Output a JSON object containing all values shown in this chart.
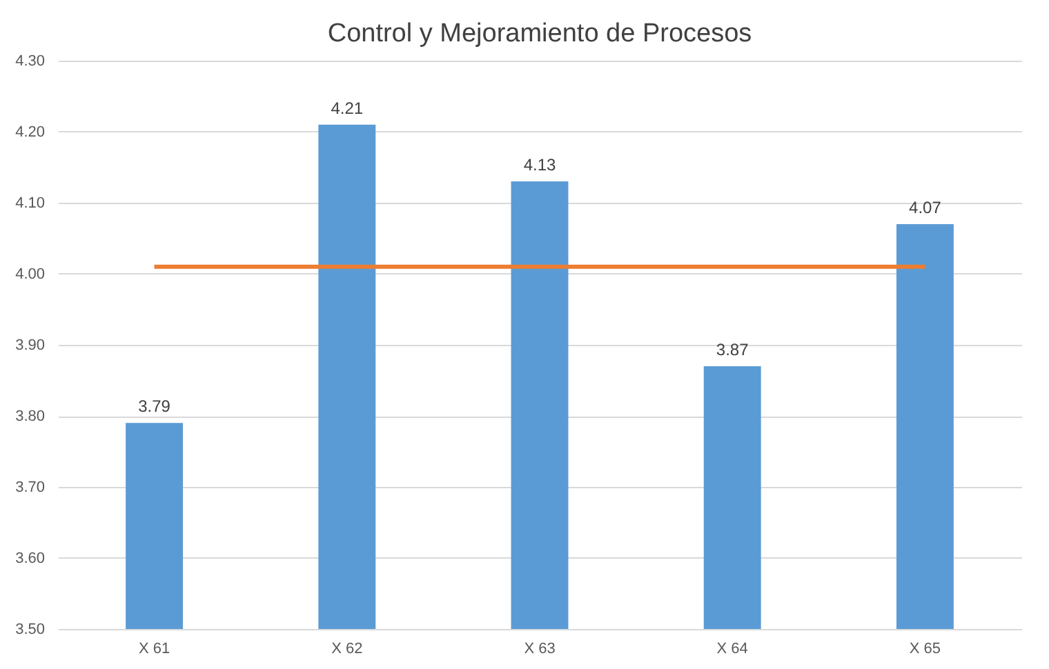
{
  "chart_data": {
    "type": "bar",
    "title": "Control y Mejoramiento de Procesos",
    "categories": [
      "X 61",
      "X 62",
      "X 63",
      "X 64",
      "X 65"
    ],
    "series": [
      {
        "color": "#5b9bd5",
        "values": [
          3.79,
          4.21,
          4.13,
          3.87,
          4.07
        ],
        "value_labels": [
          "3.79",
          "4.21",
          "4.13",
          "3.87",
          "4.07"
        ]
      },
      {
        "type": "line",
        "color": "#ed7d31",
        "values": [
          4.01,
          4.01,
          4.01,
          4.01,
          4.01
        ]
      }
    ],
    "ylim": [
      3.5,
      4.3
    ],
    "yticks": [
      {
        "value": 3.5,
        "label": "3.50"
      },
      {
        "value": 3.6,
        "label": "3.60"
      },
      {
        "value": 3.7,
        "label": "3.70"
      },
      {
        "value": 3.8,
        "label": "3.80"
      },
      {
        "value": 3.9,
        "label": "3.90"
      },
      {
        "value": 4.0,
        "label": "4.00"
      },
      {
        "value": 4.1,
        "label": "4.10"
      },
      {
        "value": 4.2,
        "label": "4.20"
      },
      {
        "value": 4.3,
        "label": "4.30"
      }
    ],
    "grid": "y"
  }
}
